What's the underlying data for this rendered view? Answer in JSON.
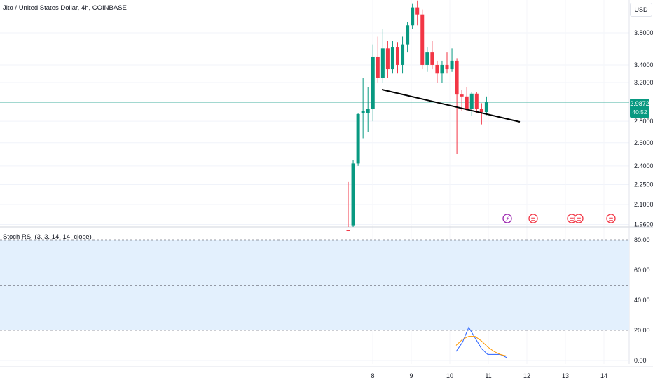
{
  "header": {
    "title": "Jito / United States Dollar, 4h, COINBASE",
    "currency": "USD"
  },
  "price_tag": {
    "price": "2.9872",
    "countdown": "40:52"
  },
  "indicator": {
    "title": "Stoch RSI (3, 3, 14, 14, close)"
  },
  "colors": {
    "up": "#089981",
    "down": "#f23645",
    "k_line": "#2962ff",
    "d_line": "#ff9800",
    "band": "#e3f0fd",
    "trendline": "#000000"
  },
  "chart_data": [
    {
      "type": "candlestick",
      "title": "Jito / United States Dollar, 4h, COINBASE",
      "scale": "log",
      "y_ticks": [
        3.8,
        3.4,
        3.2,
        2.8,
        2.6,
        2.4,
        2.25,
        2.1,
        1.96
      ],
      "y_tick_labels": [
        "3.8000",
        "3.4000",
        "3.2000",
        "2.8000",
        "2.6000",
        "2.4000",
        "2.2500",
        "2.1000",
        "1.9600"
      ],
      "x_tick_labels": [
        "8",
        "9",
        "10",
        "11",
        "12",
        "13",
        "14"
      ],
      "last_price": 2.9872,
      "candles": [
        {
          "o": 1.92,
          "h": 2.27,
          "l": 1.85,
          "c": 1.9
        },
        {
          "o": 1.95,
          "h": 2.45,
          "l": 1.94,
          "c": 2.42
        },
        {
          "o": 2.42,
          "h": 2.88,
          "l": 2.4,
          "c": 2.87
        },
        {
          "o": 2.88,
          "h": 3.25,
          "l": 2.64,
          "c": 2.9
        },
        {
          "o": 2.88,
          "h": 3.15,
          "l": 2.7,
          "c": 2.92
        },
        {
          "o": 2.92,
          "h": 3.65,
          "l": 2.8,
          "c": 3.5
        },
        {
          "o": 3.5,
          "h": 3.75,
          "l": 3.2,
          "c": 3.25
        },
        {
          "o": 3.25,
          "h": 3.85,
          "l": 3.2,
          "c": 3.6
        },
        {
          "o": 3.6,
          "h": 3.7,
          "l": 3.25,
          "c": 3.35
        },
        {
          "o": 3.35,
          "h": 3.7,
          "l": 3.3,
          "c": 3.62
        },
        {
          "o": 3.62,
          "h": 3.68,
          "l": 3.3,
          "c": 3.4
        },
        {
          "o": 3.4,
          "h": 3.75,
          "l": 3.3,
          "c": 3.65
        },
        {
          "o": 3.65,
          "h": 3.95,
          "l": 3.55,
          "c": 3.9
        },
        {
          "o": 3.9,
          "h": 4.2,
          "l": 3.85,
          "c": 4.15
        },
        {
          "o": 4.15,
          "h": 4.25,
          "l": 3.9,
          "c": 4.05
        },
        {
          "o": 4.05,
          "h": 4.12,
          "l": 3.35,
          "c": 3.4
        },
        {
          "o": 3.4,
          "h": 3.62,
          "l": 3.32,
          "c": 3.55
        },
        {
          "o": 3.55,
          "h": 3.7,
          "l": 3.35,
          "c": 3.4
        },
        {
          "o": 3.4,
          "h": 3.45,
          "l": 3.2,
          "c": 3.3
        },
        {
          "o": 3.3,
          "h": 3.45,
          "l": 3.2,
          "c": 3.4
        },
        {
          "o": 3.4,
          "h": 3.55,
          "l": 3.3,
          "c": 3.35
        },
        {
          "o": 3.35,
          "h": 3.6,
          "l": 3.32,
          "c": 3.45
        },
        {
          "o": 3.45,
          "h": 3.48,
          "l": 2.5,
          "c": 3.07
        },
        {
          "o": 3.07,
          "h": 3.12,
          "l": 2.9,
          "c": 3.05
        },
        {
          "o": 3.05,
          "h": 3.15,
          "l": 2.9,
          "c": 2.92
        },
        {
          "o": 2.92,
          "h": 3.1,
          "l": 2.85,
          "c": 3.08
        },
        {
          "o": 3.08,
          "h": 3.1,
          "l": 2.88,
          "c": 2.92
        },
        {
          "o": 2.92,
          "h": 2.98,
          "l": 2.77,
          "c": 2.89
        },
        {
          "o": 2.89,
          "h": 3.05,
          "l": 2.86,
          "c": 2.99
        }
      ]
    },
    {
      "type": "line",
      "title": "Stoch RSI (3, 3, 14, 14, close)",
      "y_ticks": [
        80,
        60,
        40,
        20,
        0
      ],
      "y_tick_labels": [
        "80.00",
        "60.00",
        "40.00",
        "20.00",
        "0.00"
      ],
      "bands": [
        20,
        50,
        80
      ],
      "series": [
        {
          "values": [
            6,
            12,
            22,
            15,
            8,
            4,
            4,
            4,
            2
          ]
        },
        {
          "values": [
            10,
            14,
            16,
            16,
            13,
            9,
            6,
            4,
            3
          ]
        }
      ]
    }
  ]
}
